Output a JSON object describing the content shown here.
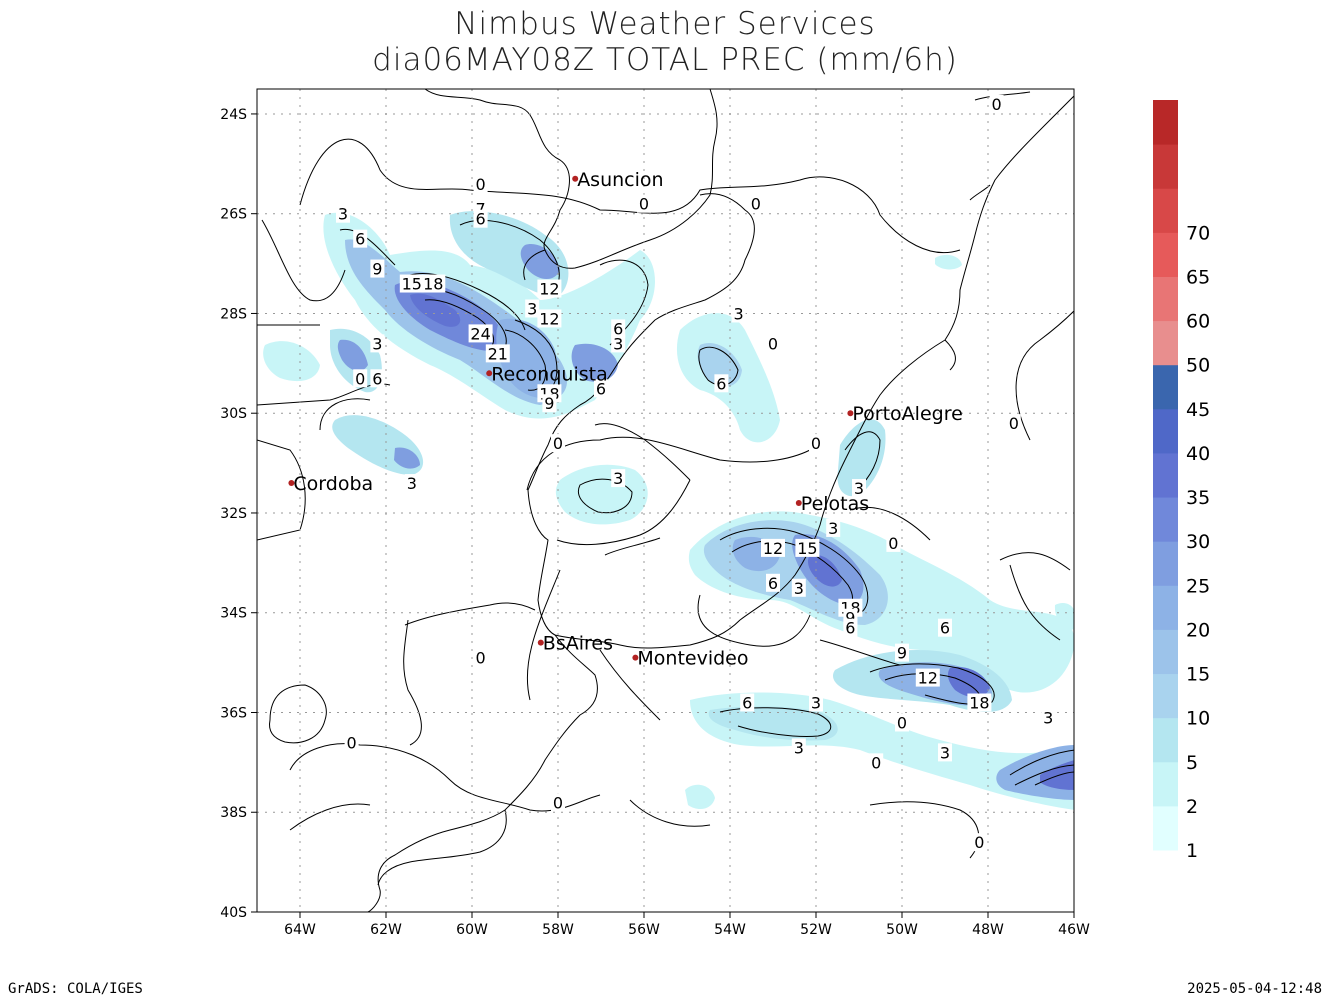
{
  "title": {
    "line1": "Nimbus Weather Services",
    "line2": "dia06MAY08Z TOTAL PREC (mm/6h)"
  },
  "footer": {
    "left": "GrADS: COLA/IGES",
    "right": "2025-05-04-12:48"
  },
  "axes": {
    "lon_labels": [
      "64W",
      "62W",
      "60W",
      "58W",
      "56W",
      "54W",
      "52W",
      "50W",
      "48W",
      "46W"
    ],
    "lat_labels": [
      "24S",
      "26S",
      "28S",
      "30S",
      "32S",
      "34S",
      "36S",
      "38S",
      "40S"
    ],
    "lon_range": [
      -65,
      -46
    ],
    "lat_range": [
      -40,
      -23.5
    ],
    "grid": "dotted"
  },
  "cities": [
    {
      "name": "Asuncion",
      "lon": -57.6,
      "lat": -25.3
    },
    {
      "name": "Reconquista",
      "lon": -59.6,
      "lat": -29.2
    },
    {
      "name": "PortoAlegre",
      "lon": -51.2,
      "lat": -30.0
    },
    {
      "name": "Cordoba",
      "lon": -64.2,
      "lat": -31.4
    },
    {
      "name": "Pelotas",
      "lon": -52.4,
      "lat": -31.8
    },
    {
      "name": "BsAires",
      "lon": -58.4,
      "lat": -34.6
    },
    {
      "name": "Montevideo",
      "lon": -56.2,
      "lat": -34.9
    }
  ],
  "colorbar": {
    "levels": [
      "1",
      "2",
      "5",
      "10",
      "15",
      "20",
      "25",
      "30",
      "35",
      "40",
      "45",
      "50",
      "60",
      "65",
      "70"
    ],
    "colors": [
      "#e1ffff",
      "#c8f5f7",
      "#b4e6f0",
      "#a9d3ee",
      "#9cc3ea",
      "#8db2e6",
      "#7f9ee0",
      "#7088da",
      "#6173d2",
      "#4f68c8",
      "#3a66ae",
      "#e88e8e",
      "#e87575",
      "#e65a5a",
      "#d84848",
      "#c83838",
      "#b82828"
    ]
  },
  "contour_labels": [
    {
      "text": "0",
      "lon": -59.8,
      "lat": -25.4
    },
    {
      "text": "3",
      "lon": -63.0,
      "lat": -26.0
    },
    {
      "text": "7",
      "lon": -59.8,
      "lat": -25.9
    },
    {
      "text": "6",
      "lon": -59.8,
      "lat": -26.1
    },
    {
      "text": "6",
      "lon": -62.6,
      "lat": -26.5
    },
    {
      "text": "9",
      "lon": -62.2,
      "lat": -27.1
    },
    {
      "text": "15",
      "lon": -61.4,
      "lat": -27.4
    },
    {
      "text": "18",
      "lon": -60.9,
      "lat": -27.4
    },
    {
      "text": "12",
      "lon": -58.2,
      "lat": -27.5
    },
    {
      "text": "3",
      "lon": -58.6,
      "lat": -27.9
    },
    {
      "text": "12",
      "lon": -58.2,
      "lat": -28.1
    },
    {
      "text": "6",
      "lon": -56.6,
      "lat": -28.3
    },
    {
      "text": "24",
      "lon": -59.8,
      "lat": -28.4
    },
    {
      "text": "3",
      "lon": -62.2,
      "lat": -28.6
    },
    {
      "text": "3",
      "lon": -56.6,
      "lat": -28.6
    },
    {
      "text": "21",
      "lon": -59.4,
      "lat": -28.8
    },
    {
      "text": "0",
      "lon": -62.6,
      "lat": -29.3
    },
    {
      "text": "6",
      "lon": -62.2,
      "lat": -29.3
    },
    {
      "text": "6",
      "lon": -54.2,
      "lat": -29.4
    },
    {
      "text": "18",
      "lon": -58.2,
      "lat": -29.6
    },
    {
      "text": "9",
      "lon": -58.2,
      "lat": -29.8
    },
    {
      "text": "6",
      "lon": -57.0,
      "lat": -29.5
    },
    {
      "text": "3",
      "lon": -53.8,
      "lat": -28.0
    },
    {
      "text": "0",
      "lon": -53.0,
      "lat": -28.6
    },
    {
      "text": "0",
      "lon": -56.0,
      "lat": -25.8
    },
    {
      "text": "0",
      "lon": -53.4,
      "lat": -25.8
    },
    {
      "text": "0",
      "lon": -47.8,
      "lat": -23.8
    },
    {
      "text": "0",
      "lon": -58.0,
      "lat": -30.6
    },
    {
      "text": "0",
      "lon": -52.0,
      "lat": -30.6
    },
    {
      "text": "0",
      "lon": -47.4,
      "lat": -30.2
    },
    {
      "text": "3",
      "lon": -61.4,
      "lat": -31.4
    },
    {
      "text": "3",
      "lon": -56.6,
      "lat": -31.3
    },
    {
      "text": "3",
      "lon": -51.0,
      "lat": -31.5
    },
    {
      "text": "3",
      "lon": -51.6,
      "lat": -32.3
    },
    {
      "text": "0",
      "lon": -50.2,
      "lat": -32.6
    },
    {
      "text": "12",
      "lon": -53.0,
      "lat": -32.7
    },
    {
      "text": "15",
      "lon": -52.2,
      "lat": -32.7
    },
    {
      "text": "6",
      "lon": -53.0,
      "lat": -33.4
    },
    {
      "text": "3",
      "lon": -52.4,
      "lat": -33.5
    },
    {
      "text": "18",
      "lon": -51.2,
      "lat": -33.9
    },
    {
      "text": "9",
      "lon": -51.2,
      "lat": -34.1
    },
    {
      "text": "6",
      "lon": -51.2,
      "lat": -34.3
    },
    {
      "text": "6",
      "lon": -49.0,
      "lat": -34.3
    },
    {
      "text": "9",
      "lon": -50.0,
      "lat": -34.8
    },
    {
      "text": "12",
      "lon": -49.4,
      "lat": -35.3
    },
    {
      "text": "18",
      "lon": -48.2,
      "lat": -35.8
    },
    {
      "text": "3",
      "lon": -46.6,
      "lat": -36.1
    },
    {
      "text": "6",
      "lon": -53.6,
      "lat": -35.8
    },
    {
      "text": "3",
      "lon": -52.0,
      "lat": -35.8
    },
    {
      "text": "0",
      "lon": -50.0,
      "lat": -36.2
    },
    {
      "text": "3",
      "lon": -52.4,
      "lat": -36.7
    },
    {
      "text": "0",
      "lon": -50.6,
      "lat": -37.0
    },
    {
      "text": "3",
      "lon": -49.0,
      "lat": -36.8
    },
    {
      "text": "0",
      "lon": -59.8,
      "lat": -34.9
    },
    {
      "text": "0",
      "lon": -62.8,
      "lat": -36.6
    },
    {
      "text": "0",
      "lon": -58.0,
      "lat": -37.8
    },
    {
      "text": "0",
      "lon": -48.2,
      "lat": -38.6
    }
  ]
}
